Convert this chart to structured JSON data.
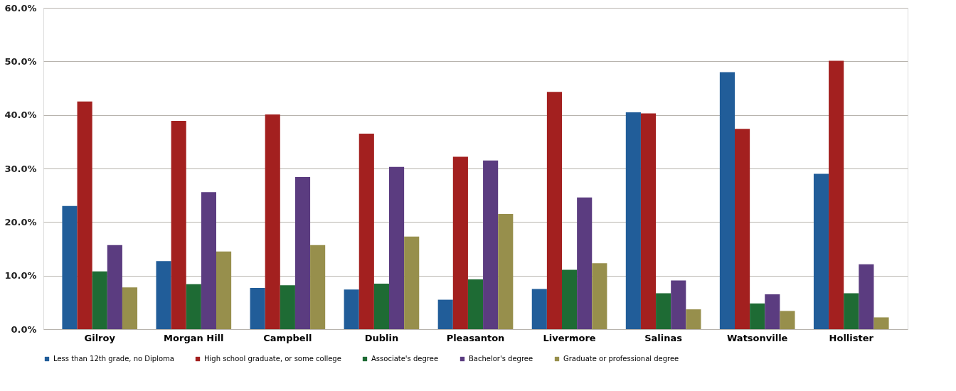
{
  "chart_data": {
    "type": "bar",
    "categories": [
      "Gilroy",
      "Morgan Hill",
      "Campbell",
      "Dublin",
      "Pleasanton",
      "Livermore",
      "Salinas",
      "Watsonville",
      "Hollister"
    ],
    "series": [
      {
        "name": "Less than 12th grade, no Diploma",
        "color": "#215d99",
        "values": [
          23.0,
          12.7,
          7.7,
          7.4,
          5.5,
          7.5,
          40.5,
          48.0,
          29.0
        ]
      },
      {
        "name": "High school graduate, or some college",
        "color": "#a3201f",
        "values": [
          42.5,
          38.9,
          40.1,
          36.5,
          32.2,
          44.3,
          40.3,
          37.4,
          50.1
        ]
      },
      {
        "name": "Associate's degree",
        "color": "#1e6b34",
        "values": [
          10.8,
          8.4,
          8.2,
          8.5,
          9.3,
          11.1,
          6.7,
          4.8,
          6.7
        ]
      },
      {
        "name": "Bachelor's degree",
        "color": "#5b3c80",
        "values": [
          15.7,
          25.6,
          28.4,
          30.3,
          31.5,
          24.6,
          9.1,
          6.5,
          12.1
        ]
      },
      {
        "name": "Graduate or professional degree",
        "color": "#978f4c",
        "values": [
          7.8,
          14.5,
          15.7,
          17.3,
          21.5,
          12.3,
          3.7,
          3.4,
          2.2
        ]
      }
    ],
    "ylim": [
      0,
      60
    ],
    "yticks": [
      {
        "value": 0,
        "label": "0.0%"
      },
      {
        "value": 10,
        "label": "10.0%"
      },
      {
        "value": 20,
        "label": "20.0%"
      },
      {
        "value": 30,
        "label": "30.0%"
      },
      {
        "value": 40,
        "label": "40.0%"
      },
      {
        "value": 50,
        "label": "50.0%"
      },
      {
        "value": 60,
        "label": "60.0%"
      }
    ],
    "grid": "y",
    "legend": "bottom"
  }
}
